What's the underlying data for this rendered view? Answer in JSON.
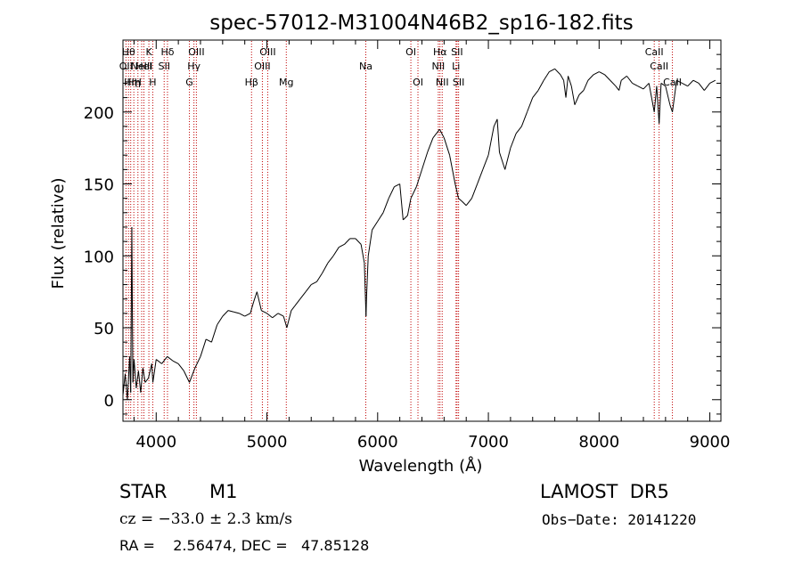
{
  "chart_data": {
    "type": "line",
    "title": "spec-57012-M31004N46B2_sp16-182.fits",
    "xlabel": "Wavelength (Å)",
    "ylabel": "Flux (relative)",
    "xlim": [
      3700,
      9100
    ],
    "ylim": [
      -15,
      250
    ],
    "x_ticks": [
      4000,
      5000,
      6000,
      7000,
      8000,
      9000
    ],
    "y_ticks": [
      0,
      50,
      100,
      150,
      200
    ],
    "grid": false,
    "series": [
      {
        "color": "#000000",
        "points": [
          [
            3700,
            3
          ],
          [
            3720,
            18
          ],
          [
            3740,
            0
          ],
          [
            3760,
            30
          ],
          [
            3770,
            5
          ],
          [
            3780,
            120
          ],
          [
            3785,
            60
          ],
          [
            3790,
            12
          ],
          [
            3800,
            28
          ],
          [
            3820,
            8
          ],
          [
            3840,
            20
          ],
          [
            3860,
            5
          ],
          [
            3880,
            22
          ],
          [
            3900,
            12
          ],
          [
            3930,
            15
          ],
          [
            3960,
            25
          ],
          [
            3970,
            12
          ],
          [
            4000,
            28
          ],
          [
            4050,
            25
          ],
          [
            4100,
            30
          ],
          [
            4150,
            27
          ],
          [
            4200,
            25
          ],
          [
            4250,
            20
          ],
          [
            4300,
            12
          ],
          [
            4350,
            22
          ],
          [
            4400,
            30
          ],
          [
            4450,
            42
          ],
          [
            4500,
            40
          ],
          [
            4550,
            52
          ],
          [
            4600,
            58
          ],
          [
            4650,
            62
          ],
          [
            4700,
            61
          ],
          [
            4750,
            60
          ],
          [
            4800,
            58
          ],
          [
            4850,
            60
          ],
          [
            4880,
            68
          ],
          [
            4910,
            75
          ],
          [
            4950,
            62
          ],
          [
            5000,
            60
          ],
          [
            5050,
            57
          ],
          [
            5100,
            60
          ],
          [
            5150,
            58
          ],
          [
            5180,
            50
          ],
          [
            5220,
            62
          ],
          [
            5250,
            65
          ],
          [
            5300,
            70
          ],
          [
            5350,
            75
          ],
          [
            5400,
            80
          ],
          [
            5450,
            82
          ],
          [
            5500,
            88
          ],
          [
            5550,
            95
          ],
          [
            5600,
            100
          ],
          [
            5650,
            106
          ],
          [
            5700,
            108
          ],
          [
            5750,
            112
          ],
          [
            5800,
            112
          ],
          [
            5850,
            108
          ],
          [
            5880,
            95
          ],
          [
            5895,
            58
          ],
          [
            5900,
            72
          ],
          [
            5915,
            100
          ],
          [
            5950,
            118
          ],
          [
            6000,
            124
          ],
          [
            6050,
            130
          ],
          [
            6100,
            140
          ],
          [
            6150,
            148
          ],
          [
            6200,
            150
          ],
          [
            6230,
            125
          ],
          [
            6270,
            128
          ],
          [
            6300,
            140
          ],
          [
            6350,
            148
          ],
          [
            6400,
            160
          ],
          [
            6450,
            172
          ],
          [
            6500,
            182
          ],
          [
            6560,
            188
          ],
          [
            6600,
            182
          ],
          [
            6650,
            170
          ],
          [
            6700,
            150
          ],
          [
            6730,
            140
          ],
          [
            6760,
            138
          ],
          [
            6800,
            135
          ],
          [
            6850,
            140
          ],
          [
            6900,
            150
          ],
          [
            6950,
            160
          ],
          [
            7000,
            170
          ],
          [
            7050,
            190
          ],
          [
            7080,
            195
          ],
          [
            7100,
            172
          ],
          [
            7150,
            160
          ],
          [
            7200,
            175
          ],
          [
            7250,
            185
          ],
          [
            7300,
            190
          ],
          [
            7350,
            200
          ],
          [
            7400,
            210
          ],
          [
            7450,
            215
          ],
          [
            7500,
            222
          ],
          [
            7550,
            228
          ],
          [
            7600,
            230
          ],
          [
            7650,
            226
          ],
          [
            7680,
            222
          ],
          [
            7700,
            210
          ],
          [
            7720,
            225
          ],
          [
            7750,
            218
          ],
          [
            7780,
            205
          ],
          [
            7820,
            212
          ],
          [
            7860,
            215
          ],
          [
            7900,
            222
          ],
          [
            7950,
            226
          ],
          [
            8000,
            228
          ],
          [
            8050,
            226
          ],
          [
            8100,
            222
          ],
          [
            8150,
            218
          ],
          [
            8180,
            215
          ],
          [
            8200,
            222
          ],
          [
            8250,
            225
          ],
          [
            8300,
            220
          ],
          [
            8350,
            218
          ],
          [
            8400,
            216
          ],
          [
            8450,
            220
          ],
          [
            8498,
            200
          ],
          [
            8520,
            218
          ],
          [
            8542,
            192
          ],
          [
            8560,
            220
          ],
          [
            8600,
            218
          ],
          [
            8640,
            205
          ],
          [
            8662,
            200
          ],
          [
            8700,
            222
          ],
          [
            8750,
            220
          ],
          [
            8800,
            218
          ],
          [
            8850,
            222
          ],
          [
            8900,
            220
          ],
          [
            8950,
            215
          ],
          [
            9000,
            220
          ],
          [
            9050,
            222
          ]
        ]
      }
    ],
    "lines": [
      {
        "x": 3727,
        "label": "OII",
        "row": 2
      },
      {
        "x": 3750,
        "label": "Hθ",
        "row": 1
      },
      {
        "x": 3770,
        "label": "Hη",
        "row": 3
      },
      {
        "x": 3798,
        "label": "Hη",
        "row": 3
      },
      {
        "x": 3835,
        "label": "H",
        "row": 3
      },
      {
        "x": 3869,
        "label": "NeIII",
        "row": 2
      },
      {
        "x": 3889,
        "label": "HeI",
        "row": 2
      },
      {
        "x": 3934,
        "label": "K",
        "row": 1
      },
      {
        "x": 3969,
        "label": "H",
        "row": 3
      },
      {
        "x": 4072,
        "label": "SII",
        "row": 2
      },
      {
        "x": 4102,
        "label": "Hδ",
        "row": 1
      },
      {
        "x": 4300,
        "label": "G",
        "row": 3
      },
      {
        "x": 4341,
        "label": "Hγ",
        "row": 2
      },
      {
        "x": 4363,
        "label": "OIII",
        "row": 1
      },
      {
        "x": 4861,
        "label": "Hβ",
        "row": 3
      },
      {
        "x": 4959,
        "label": "OIII",
        "row": 2
      },
      {
        "x": 5007,
        "label": "OIII",
        "row": 1
      },
      {
        "x": 5175,
        "label": "Mg",
        "row": 3
      },
      {
        "x": 5893,
        "label": "Na",
        "row": 2
      },
      {
        "x": 6300,
        "label": "OI",
        "row": 1
      },
      {
        "x": 6364,
        "label": "OI",
        "row": 3
      },
      {
        "x": 6548,
        "label": "NII",
        "row": 2
      },
      {
        "x": 6563,
        "label": "Hα",
        "row": 1
      },
      {
        "x": 6583,
        "label": "NII",
        "row": 3
      },
      {
        "x": 6708,
        "label": "Li",
        "row": 2
      },
      {
        "x": 6717,
        "label": "SII",
        "row": 1
      },
      {
        "x": 6731,
        "label": "SII",
        "row": 3
      },
      {
        "x": 8498,
        "label": "CaII",
        "row": 1
      },
      {
        "x": 8542,
        "label": "CaII",
        "row": 2
      },
      {
        "x": 8662,
        "label": "CaII",
        "row": 3
      }
    ]
  },
  "info": {
    "class_label": "STAR",
    "subclass": "M1",
    "survey": "LAMOST  DR5",
    "cz": "cz = −33.0 ± 2.3 km/s",
    "obs_date": "Obs−Date: 20141220",
    "radec": "RA =    2.56474, DEC =   47.85128"
  }
}
